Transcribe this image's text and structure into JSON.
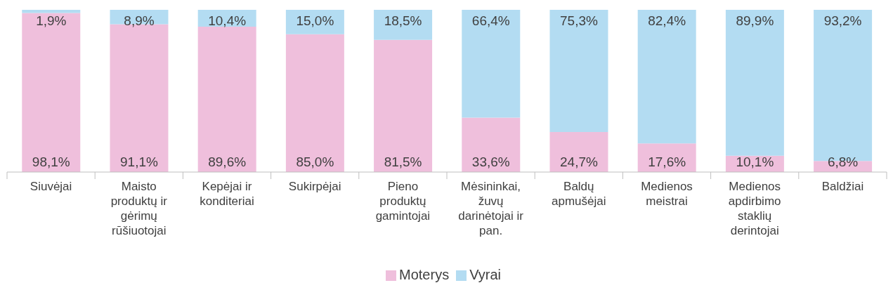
{
  "chart_data": {
    "type": "bar",
    "stacked": true,
    "categories": [
      "Siuvėjai",
      "Maisto produktų ir gėrimų rūšiuotojai",
      "Kepėjai ir konditeriai",
      "Sukirpėjai",
      "Pieno produktų gamintojai",
      "Mėsininkai, žuvų darinėtojai ir pan.",
      "Baldų apmušėjai",
      "Medienos meistrai",
      "Medienos apdirbimo staklių derintojai",
      "Baldžiai"
    ],
    "series": [
      {
        "name": "Moterys",
        "color": "#efbfdc",
        "values": [
          98.1,
          91.1,
          89.6,
          85.0,
          81.5,
          33.6,
          24.7,
          17.6,
          10.1,
          6.8
        ],
        "value_labels": [
          "98,1%",
          "91,1%",
          "89,6%",
          "85,0%",
          "81,5%",
          "33,6%",
          "24,7%",
          "17,6%",
          "10,1%",
          "6,8%"
        ]
      },
      {
        "name": "Vyrai",
        "color": "#b3dcf2",
        "values": [
          1.9,
          8.9,
          10.4,
          15.0,
          18.5,
          66.4,
          75.3,
          82.4,
          89.9,
          93.2
        ],
        "value_labels": [
          "1,9%",
          "8,9%",
          "10,4%",
          "15,0%",
          "18,5%",
          "66,4%",
          "75,3%",
          "82,4%",
          "89,9%",
          "93,2%"
        ]
      }
    ],
    "legend": "bottom"
  }
}
